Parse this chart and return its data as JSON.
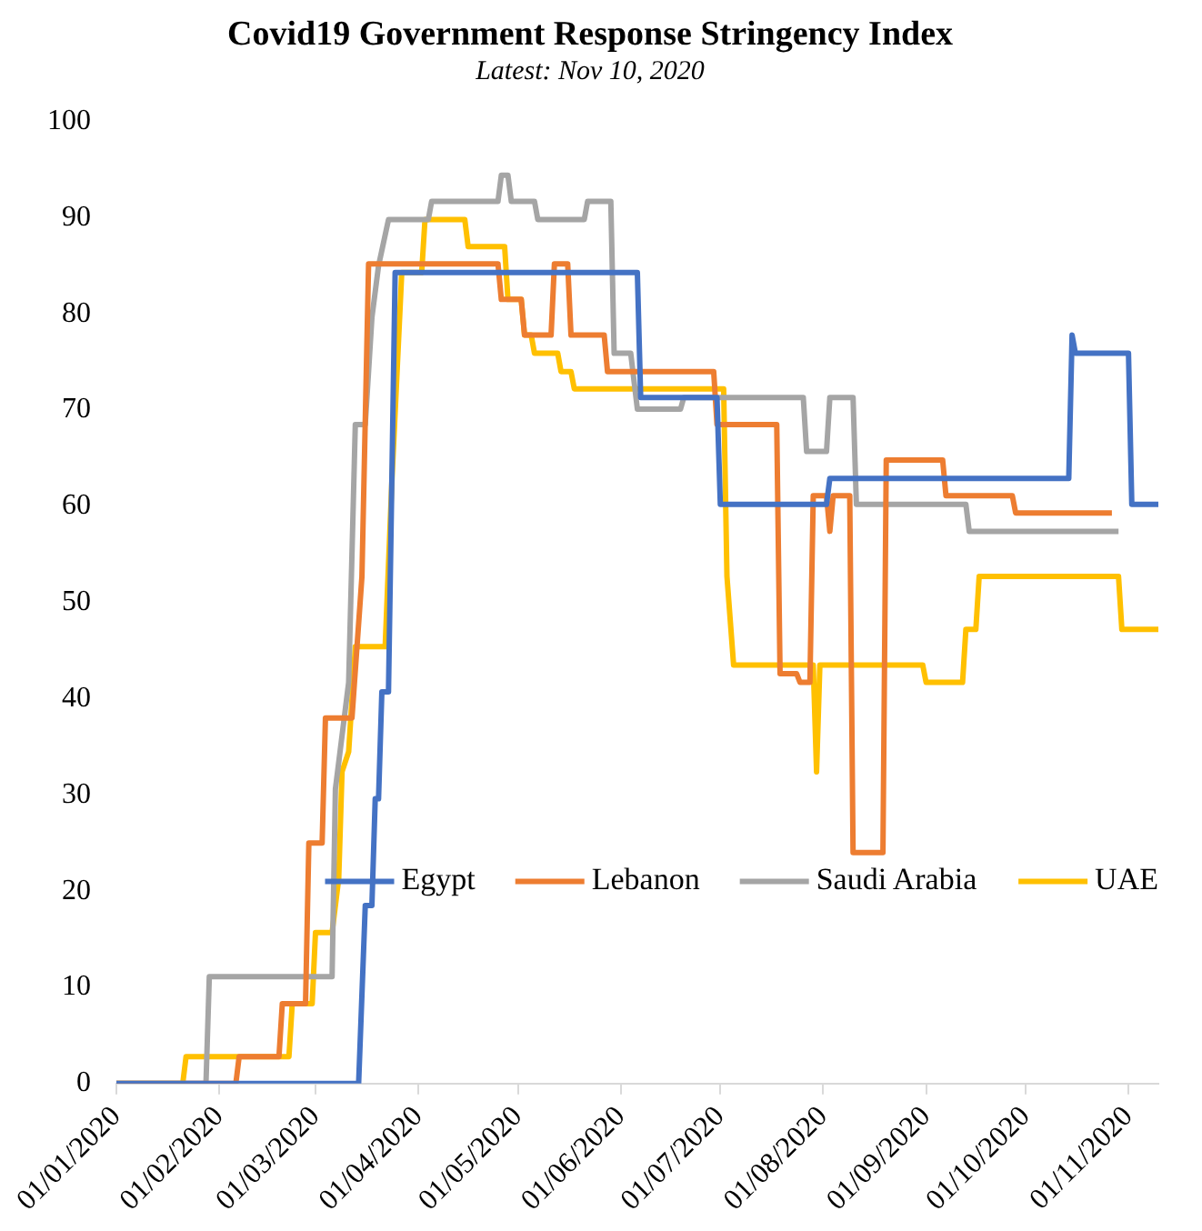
{
  "chart_data": {
    "type": "line",
    "title": "Covid19 Government Response Stringency Index",
    "subtitle": "Latest: Nov 10, 2020",
    "xlim": [
      "2020-01-01",
      "2020-11-10"
    ],
    "xticks": [
      {
        "value": "2020-01-01",
        "label": "01/01/2020"
      },
      {
        "value": "2020-02-01",
        "label": "01/02/2020"
      },
      {
        "value": "2020-03-01",
        "label": "01/03/2020"
      },
      {
        "value": "2020-04-01",
        "label": "01/04/2020"
      },
      {
        "value": "2020-05-01",
        "label": "01/05/2020"
      },
      {
        "value": "2020-06-01",
        "label": "01/06/2020"
      },
      {
        "value": "2020-07-01",
        "label": "01/07/2020"
      },
      {
        "value": "2020-08-01",
        "label": "01/08/2020"
      },
      {
        "value": "2020-09-01",
        "label": "01/09/2020"
      },
      {
        "value": "2020-10-01",
        "label": "01/10/2020"
      },
      {
        "value": "2020-11-01",
        "label": "01/11/2020"
      }
    ],
    "ylim": [
      0,
      100
    ],
    "yticks": [
      0,
      10,
      20,
      30,
      40,
      50,
      60,
      70,
      80,
      90,
      100
    ],
    "grid": false,
    "legend": "bottom right",
    "marker": "none",
    "line_style": "solid",
    "series": [
      {
        "name": "Egypt",
        "color": "#4472c4",
        "x": [
          "2020-01-01",
          "2020-03-14",
          "2020-03-16",
          "2020-03-18",
          "2020-03-19",
          "2020-03-20",
          "2020-03-21",
          "2020-03-23",
          "2020-03-25",
          "2020-06-06",
          "2020-06-07",
          "2020-06-30",
          "2020-07-01",
          "2020-08-02",
          "2020-08-03",
          "2020-10-14",
          "2020-10-15",
          "2020-10-16",
          "2020-11-01",
          "2020-11-02",
          "2020-11-10"
        ],
        "values": [
          0,
          0,
          18.5,
          18.5,
          29.6,
          29.6,
          40.7,
          40.7,
          84.3,
          84.3,
          71.3,
          71.3,
          60.2,
          60.2,
          62.9,
          62.9,
          77.8,
          75.9,
          75.9,
          60.2,
          60.2
        ]
      },
      {
        "name": "Lebanon",
        "color": "#ed7d31",
        "x": [
          "2020-01-01",
          "2020-02-06",
          "2020-02-07",
          "2020-02-19",
          "2020-02-20",
          "2020-02-27",
          "2020-02-28",
          "2020-03-03",
          "2020-03-04",
          "2020-03-12",
          "2020-03-15",
          "2020-03-17",
          "2020-04-25",
          "2020-04-26",
          "2020-05-02",
          "2020-05-03",
          "2020-05-11",
          "2020-05-12",
          "2020-05-16",
          "2020-05-17",
          "2020-05-27",
          "2020-05-28",
          "2020-06-29",
          "2020-06-30",
          "2020-07-18",
          "2020-07-19",
          "2020-07-24",
          "2020-07-25",
          "2020-07-28",
          "2020-07-29",
          "2020-08-02",
          "2020-08-03",
          "2020-08-04",
          "2020-08-09",
          "2020-08-10",
          "2020-08-19",
          "2020-08-20",
          "2020-09-06",
          "2020-09-07",
          "2020-09-27",
          "2020-09-28",
          "2020-10-27"
        ],
        "values": [
          0,
          0,
          2.8,
          2.8,
          8.3,
          8.3,
          25,
          25,
          38,
          38,
          52.7,
          85.2,
          85.2,
          81.5,
          81.5,
          77.8,
          77.8,
          85.2,
          85.2,
          77.8,
          77.8,
          74,
          74,
          68.5,
          68.5,
          42.6,
          42.6,
          41.7,
          41.7,
          61.1,
          61.1,
          57.4,
          61.1,
          61.1,
          24,
          24,
          64.8,
          64.8,
          61.1,
          61.1,
          59.3,
          59.3
        ]
      },
      {
        "name": "Saudi Arabia",
        "color": "#a5a5a5",
        "x": [
          "2020-01-01",
          "2020-01-28",
          "2020-01-29",
          "2020-03-06",
          "2020-03-07",
          "2020-03-11",
          "2020-03-13",
          "2020-03-16",
          "2020-03-18",
          "2020-03-20",
          "2020-03-23",
          "2020-04-04",
          "2020-04-05",
          "2020-04-25",
          "2020-04-26",
          "2020-04-28",
          "2020-04-29",
          "2020-05-06",
          "2020-05-07",
          "2020-05-21",
          "2020-05-22",
          "2020-05-29",
          "2020-05-30",
          "2020-06-04",
          "2020-06-06",
          "2020-06-19",
          "2020-06-20",
          "2020-07-26",
          "2020-07-27",
          "2020-08-02",
          "2020-08-03",
          "2020-08-10",
          "2020-08-11",
          "2020-09-13",
          "2020-09-14",
          "2020-10-29"
        ],
        "values": [
          0,
          0,
          11.1,
          11.1,
          30.6,
          41.7,
          68.5,
          68.5,
          79.6,
          85,
          89.8,
          89.8,
          91.7,
          91.7,
          94.4,
          94.4,
          91.7,
          91.7,
          89.8,
          89.8,
          91.7,
          91.7,
          75.9,
          75.9,
          70.1,
          70.1,
          71.3,
          71.3,
          65.7,
          65.7,
          71.3,
          71.3,
          60.2,
          60.2,
          57.4,
          57.4
        ]
      },
      {
        "name": "UAE",
        "color": "#ffc000",
        "x": [
          "2020-01-01",
          "2020-01-21",
          "2020-01-22",
          "2020-02-22",
          "2020-02-23",
          "2020-02-29",
          "2020-03-01",
          "2020-03-06",
          "2020-03-08",
          "2020-03-09",
          "2020-03-11",
          "2020-03-13",
          "2020-03-22",
          "2020-03-24",
          "2020-03-27",
          "2020-04-02",
          "2020-04-03",
          "2020-04-15",
          "2020-04-16",
          "2020-04-27",
          "2020-04-28",
          "2020-05-02",
          "2020-05-03",
          "2020-05-05",
          "2020-05-06",
          "2020-05-13",
          "2020-05-14",
          "2020-05-17",
          "2020-05-18",
          "2020-07-02",
          "2020-07-03",
          "2020-07-05",
          "2020-07-29",
          "2020-07-30",
          "2020-07-31",
          "2020-08-31",
          "2020-09-01",
          "2020-09-12",
          "2020-09-13",
          "2020-09-16",
          "2020-09-17",
          "2020-10-29",
          "2020-10-30",
          "2020-11-10"
        ],
        "values": [
          0,
          0,
          2.8,
          2.8,
          8.3,
          8.3,
          15.7,
          15.7,
          21.3,
          32.4,
          34.5,
          45.4,
          45.4,
          62.4,
          84.3,
          84.3,
          89.8,
          89.8,
          87,
          87,
          81.5,
          81.5,
          77.8,
          77.8,
          75.9,
          75.9,
          74,
          74,
          72.2,
          72.2,
          52.7,
          43.5,
          43.5,
          32.4,
          43.5,
          43.5,
          41.7,
          41.7,
          47.2,
          47.2,
          52.7,
          52.7,
          47.2,
          47.2
        ]
      }
    ]
  }
}
